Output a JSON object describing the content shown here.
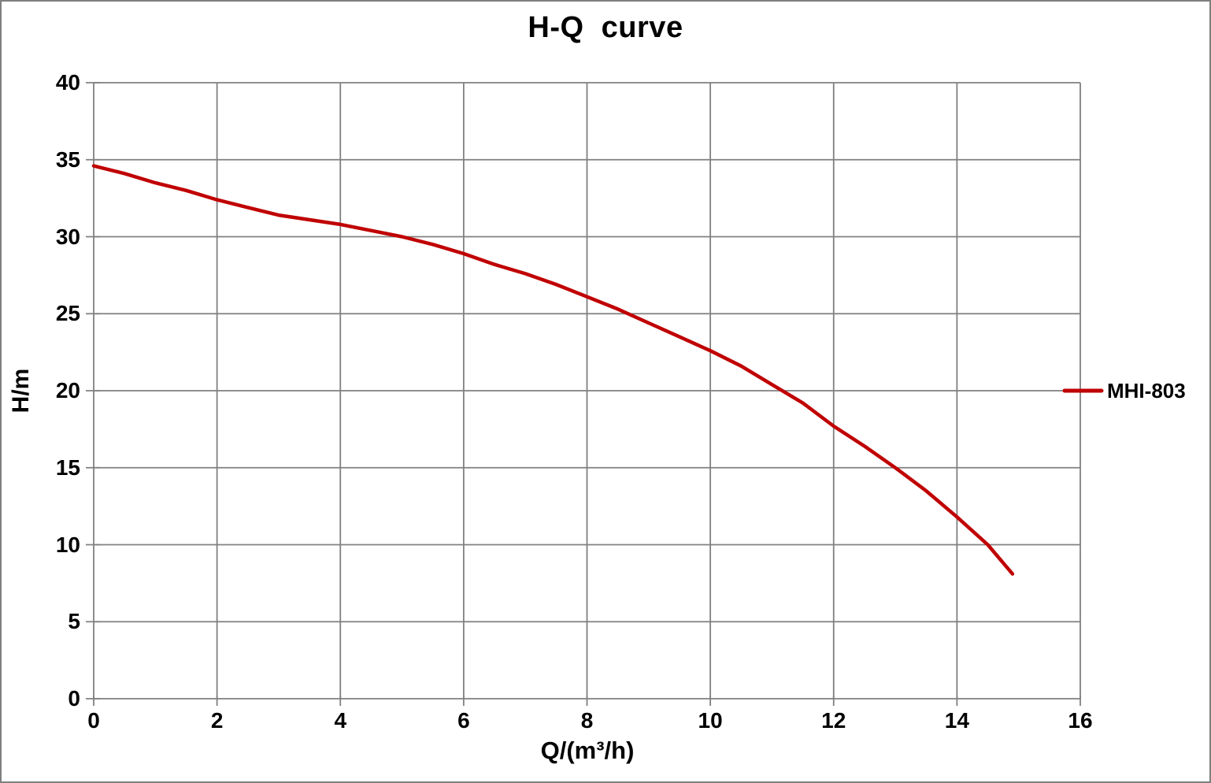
{
  "window": {
    "background": "#ffffff",
    "border_color": "#7f7f7f"
  },
  "chart_data": {
    "type": "line",
    "title": "H-Q  curve",
    "xlabel": "Q/(m³/h)",
    "ylabel": "H/m",
    "xlim": [
      0,
      16
    ],
    "ylim": [
      0,
      40
    ],
    "xticks": [
      0,
      2,
      4,
      6,
      8,
      10,
      12,
      14,
      16
    ],
    "yticks": [
      0,
      5,
      10,
      15,
      20,
      25,
      30,
      35,
      40
    ],
    "grid": true,
    "grid_color": "#808080",
    "text_color": "#000000",
    "legend_position": "right-middle",
    "series": [
      {
        "name": "MHI-803",
        "color": "#c00000",
        "points": [
          [
            0,
            34.6
          ],
          [
            0.5,
            34.1
          ],
          [
            1,
            33.5
          ],
          [
            1.5,
            33.0
          ],
          [
            2,
            32.4
          ],
          [
            2.5,
            31.9
          ],
          [
            3,
            31.4
          ],
          [
            3.5,
            31.1
          ],
          [
            4,
            30.8
          ],
          [
            4.5,
            30.4
          ],
          [
            5,
            30.0
          ],
          [
            5.5,
            29.5
          ],
          [
            6,
            28.9
          ],
          [
            6.5,
            28.2
          ],
          [
            7,
            27.6
          ],
          [
            7.5,
            26.9
          ],
          [
            8,
            26.1
          ],
          [
            8.5,
            25.3
          ],
          [
            9,
            24.4
          ],
          [
            9.5,
            23.5
          ],
          [
            10,
            22.6
          ],
          [
            10.5,
            21.6
          ],
          [
            11,
            20.4
          ],
          [
            11.5,
            19.2
          ],
          [
            12,
            17.7
          ],
          [
            12.5,
            16.4
          ],
          [
            13,
            15.0
          ],
          [
            13.5,
            13.5
          ],
          [
            14,
            11.8
          ],
          [
            14.5,
            10.0
          ],
          [
            14.9,
            8.1
          ]
        ]
      }
    ]
  }
}
